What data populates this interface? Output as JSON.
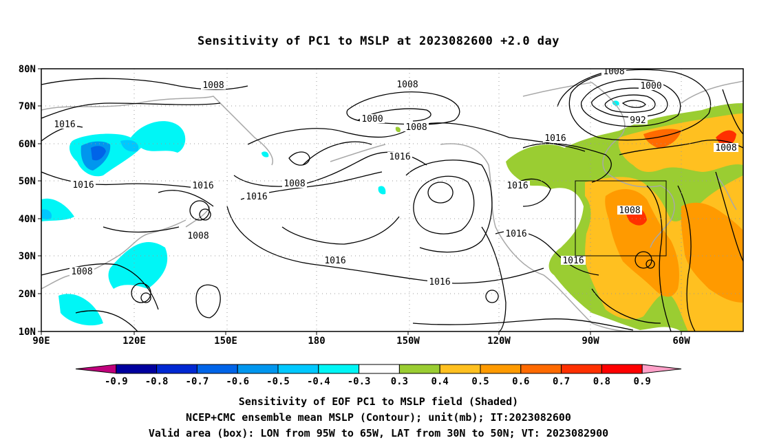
{
  "title": "Sensitivity of PC1 to MSLP at 2023082600 +2.0 day",
  "map": {
    "lon_ticks": [
      "90E",
      "120E",
      "150E",
      "180",
      "150W",
      "120W",
      "90W",
      "60W"
    ],
    "lat_ticks": [
      "80N",
      "70N",
      "60N",
      "50N",
      "40N",
      "30N",
      "20N",
      "10N"
    ],
    "contour_labels": [
      "1008",
      "1008",
      "1008",
      "1000",
      "1000",
      "992",
      "1016",
      "1016",
      "1016",
      "1016",
      "1016",
      "1016",
      "1016",
      "1016",
      "1016",
      "1008",
      "1008",
      "1008",
      "1008",
      "1008",
      "1008",
      "1016",
      "1016"
    ],
    "valid_box": {
      "lon_from": "95W",
      "lon_to": "65W",
      "lat_from": "30N",
      "lat_to": "50N"
    }
  },
  "colorbar": {
    "labels": [
      "-0.9",
      "-0.8",
      "-0.7",
      "-0.6",
      "-0.5",
      "-0.4",
      "-0.3",
      "0.3",
      "0.4",
      "0.5",
      "0.6",
      "0.7",
      "0.8",
      "0.9"
    ],
    "colors": [
      "#c0007c",
      "#00009e",
      "#0028d2",
      "#0064e8",
      "#0096ee",
      "#00c8ff",
      "#00f6f6",
      "#ffffff",
      "#9acd32",
      "#ffc020",
      "#ff9a00",
      "#ff6a00",
      "#ff3000",
      "#ff0000",
      "#ffa0c8"
    ]
  },
  "footer": {
    "line1": "Sensitivity of EOF PC1 to MSLP field (Shaded)",
    "line2": "NCEP+CMC ensemble mean MSLP (Contour); unit(mb); IT:2023082600",
    "line3": "Valid area (box): LON from 95W to 65W, LAT from 30N to 50N; VT: 2023082900"
  }
}
